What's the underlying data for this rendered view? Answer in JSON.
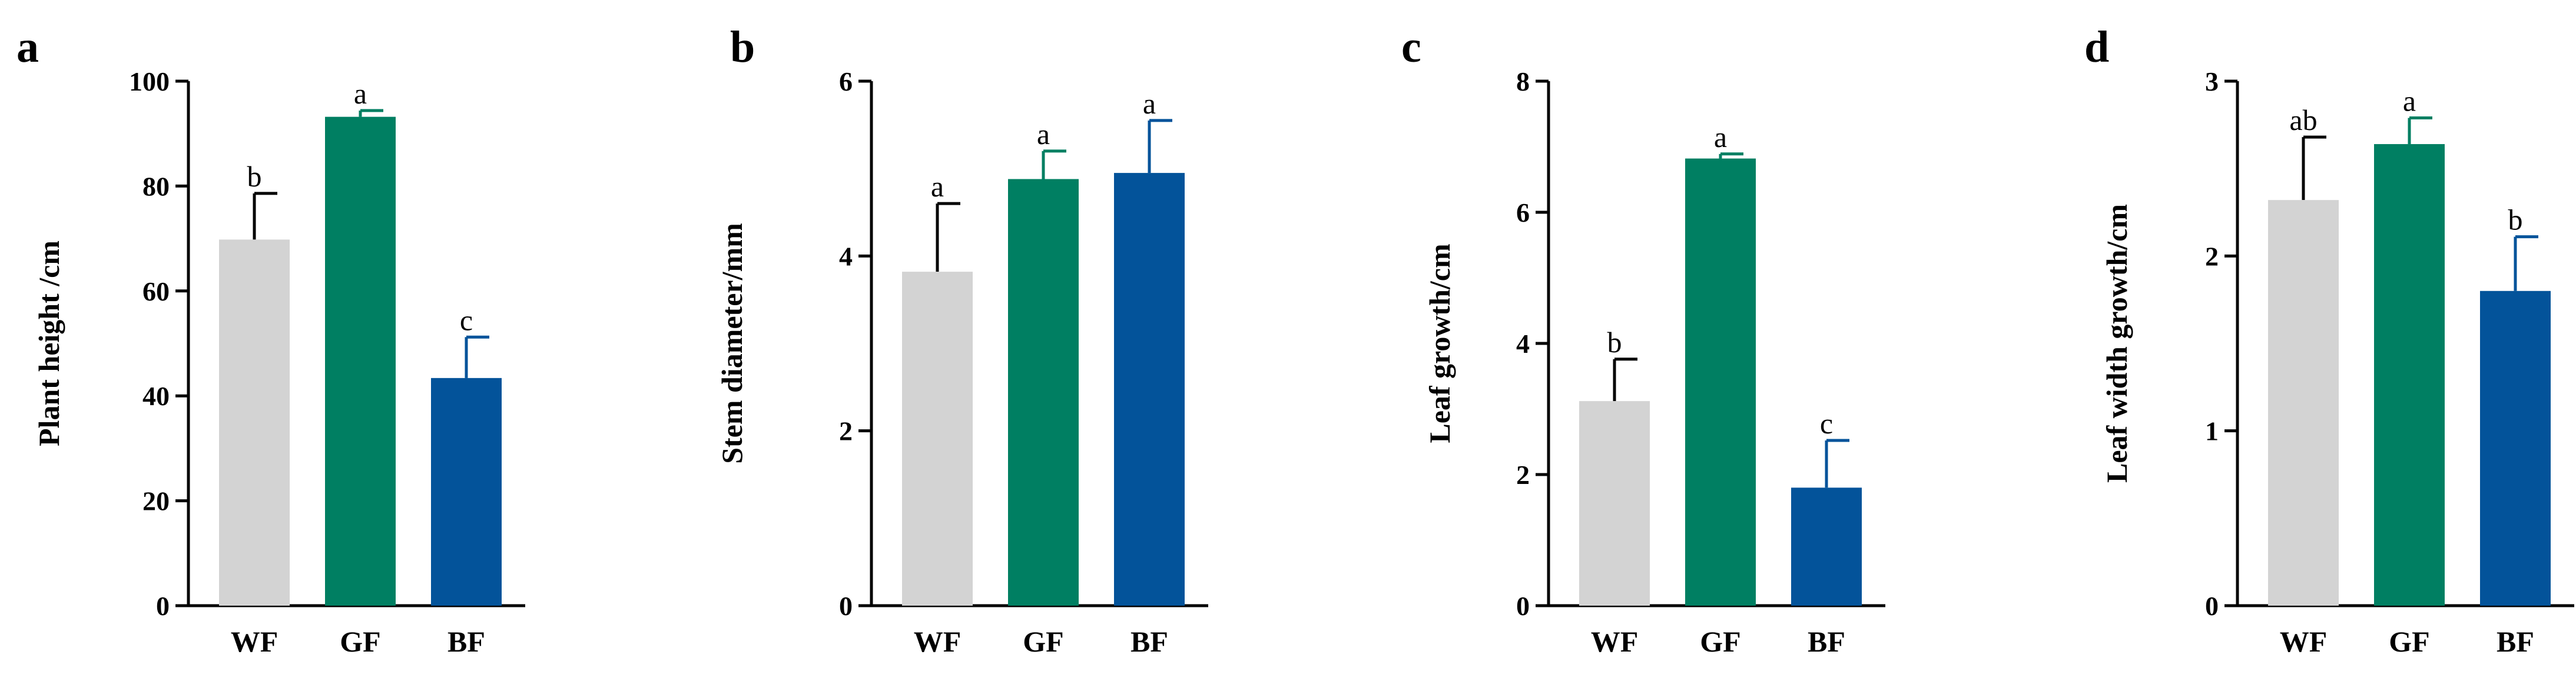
{
  "figure": {
    "categories": [
      "WF",
      "GF",
      "BF"
    ],
    "colors": {
      "WF": "#d3d3d3",
      "GF": "#007f62",
      "BF": "#03539a"
    }
  },
  "chart_data": [
    {
      "type": "bar",
      "panel": "a",
      "ylabel": "Plant height /cm",
      "categories": [
        "WF",
        "GF",
        "BF"
      ],
      "values": [
        69.8,
        93.2,
        43.4
      ],
      "errors": [
        8.8,
        1.2,
        7.8
      ],
      "significance": [
        "b",
        "a",
        "c"
      ],
      "ylim": [
        0,
        100
      ],
      "yticks": [
        0,
        20,
        40,
        60,
        80,
        100
      ]
    },
    {
      "type": "bar",
      "panel": "b",
      "ylabel": "Stem diameter/mm",
      "categories": [
        "WF",
        "GF",
        "BF"
      ],
      "values": [
        3.82,
        4.88,
        4.95
      ],
      "errors": [
        0.78,
        0.32,
        0.6
      ],
      "significance": [
        "a",
        "a",
        "a"
      ],
      "ylim": [
        0,
        6
      ],
      "yticks": [
        0,
        2,
        4,
        6
      ]
    },
    {
      "type": "bar",
      "panel": "c",
      "ylabel": "Leaf growth/cm",
      "categories": [
        "WF",
        "GF",
        "BF"
      ],
      "values": [
        3.12,
        6.82,
        1.8
      ],
      "errors": [
        0.64,
        0.07,
        0.72
      ],
      "significance": [
        "b",
        "a",
        "c"
      ],
      "ylim": [
        0,
        8
      ],
      "yticks": [
        0,
        2,
        4,
        6,
        8
      ]
    },
    {
      "type": "bar",
      "panel": "d",
      "ylabel": "Leaf width growth/cm",
      "categories": [
        "WF",
        "GF",
        "BF"
      ],
      "values": [
        2.32,
        2.64,
        1.8
      ],
      "errors": [
        0.36,
        0.15,
        0.31
      ],
      "significance": [
        "ab",
        "a",
        "b"
      ],
      "ylim": [
        0,
        3
      ],
      "yticks": [
        0,
        1,
        2,
        3
      ]
    }
  ]
}
